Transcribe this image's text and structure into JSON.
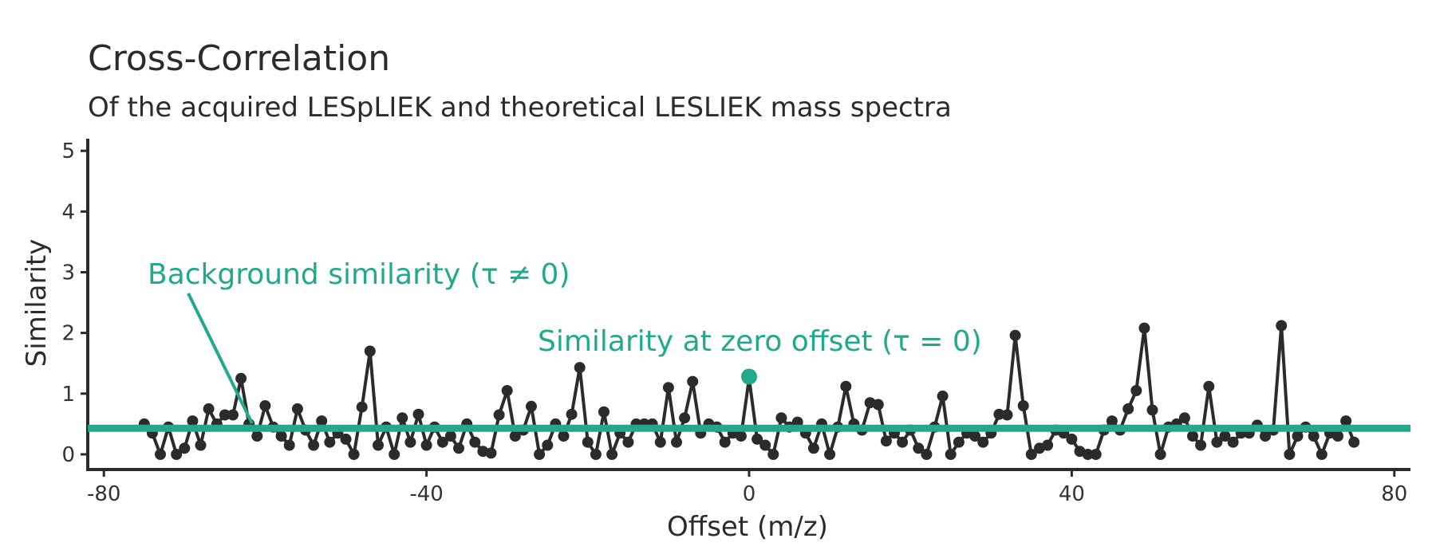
{
  "chart_data": {
    "type": "line",
    "title": "Cross-Correlation",
    "subtitle": "Of the acquired LESpLIEK and theoretical LESLIEK mass spectra",
    "xlabel": "Offset (m/z)",
    "ylabel": "Similarity",
    "xlim": [
      -82,
      82
    ],
    "ylim": [
      -0.25,
      5.2
    ],
    "xticks": [
      -80,
      -40,
      0,
      40,
      80
    ],
    "yticks": [
      0,
      1,
      2,
      3,
      4,
      5
    ],
    "grid": false,
    "colors": {
      "series": "#2b2b2b",
      "accent": "#21a98e"
    },
    "x_start": -75,
    "x_step": 1,
    "values": [
      0.5,
      0.35,
      0.0,
      0.45,
      0.0,
      0.1,
      0.55,
      0.15,
      0.75,
      0.5,
      0.65,
      0.65,
      1.25,
      0.5,
      0.3,
      0.8,
      0.45,
      0.3,
      0.15,
      0.75,
      0.4,
      0.15,
      0.55,
      0.2,
      0.35,
      0.25,
      0.0,
      0.78,
      1.7,
      0.15,
      0.45,
      0.0,
      0.6,
      0.2,
      0.66,
      0.15,
      0.45,
      0.2,
      0.3,
      0.1,
      0.5,
      0.2,
      0.05,
      0.02,
      0.65,
      1.05,
      0.3,
      0.4,
      0.79,
      0.0,
      0.15,
      0.5,
      0.3,
      0.66,
      1.43,
      0.2,
      0.0,
      0.7,
      0.0,
      0.35,
      0.2,
      0.5,
      0.5,
      0.5,
      0.2,
      1.1,
      0.2,
      0.6,
      1.2,
      0.35,
      0.5,
      0.45,
      0.2,
      0.35,
      0.3,
      1.25,
      0.25,
      0.15,
      0.0,
      0.6,
      0.45,
      0.53,
      0.35,
      0.1,
      0.5,
      0.0,
      0.45,
      1.12,
      0.5,
      0.4,
      0.85,
      0.82,
      0.22,
      0.35,
      0.2,
      0.4,
      0.1,
      0.0,
      0.45,
      0.96,
      0.0,
      0.2,
      0.35,
      0.3,
      0.2,
      0.35,
      0.66,
      0.65,
      1.96,
      0.8,
      0.0,
      0.1,
      0.15,
      0.4,
      0.35,
      0.25,
      0.05,
      0.0,
      0.0,
      0.4,
      0.55,
      0.4,
      0.75,
      1.05,
      2.08,
      0.73,
      0.0,
      0.45,
      0.5,
      0.6,
      0.3,
      0.15,
      1.12,
      0.2,
      0.3,
      0.2,
      0.35,
      0.35,
      0.48,
      0.3,
      0.4,
      2.12,
      0.0,
      0.3,
      0.45,
      0.3,
      0.0,
      0.35,
      0.3,
      0.55,
      0.2
    ],
    "background_similarity": 0.43,
    "zero_offset_similarity": 1.28,
    "annotations": {
      "background_label": "Background similarity (τ ≠ 0)",
      "zero_label": "Similarity at zero offset (τ = 0)"
    }
  }
}
